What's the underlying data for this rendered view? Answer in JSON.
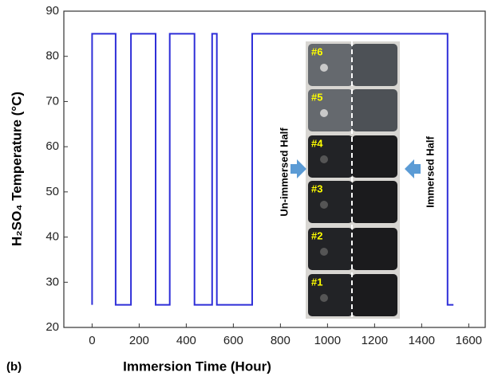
{
  "chart_data": {
    "type": "line",
    "xlabel": "Immersion Time (Hour)",
    "ylabel": "H₂SO₄ Temperature (°C)",
    "panel_label": "(b)",
    "x": [
      0,
      0,
      100,
      100,
      165,
      165,
      270,
      270,
      330,
      330,
      435,
      435,
      510,
      510,
      530,
      530,
      680,
      680,
      1510,
      1510,
      1535
    ],
    "values": [
      25,
      85,
      85,
      25,
      25,
      85,
      85,
      25,
      25,
      85,
      85,
      25,
      25,
      85,
      85,
      25,
      25,
      85,
      85,
      25,
      25
    ],
    "color": "#2f2fd8",
    "xlim": [
      -120,
      1670
    ],
    "ylim": [
      20,
      90
    ],
    "xticks": [
      0,
      200,
      400,
      600,
      800,
      1000,
      1200,
      1400,
      1600
    ],
    "yticks": [
      20,
      30,
      40,
      50,
      60,
      70,
      80,
      90
    ],
    "inset": {
      "sample_labels": [
        "#6",
        "#5",
        "#4",
        "#3",
        "#2",
        "#1"
      ],
      "left_label": "Un-immersed Half",
      "right_label": "Immersed Half"
    }
  }
}
